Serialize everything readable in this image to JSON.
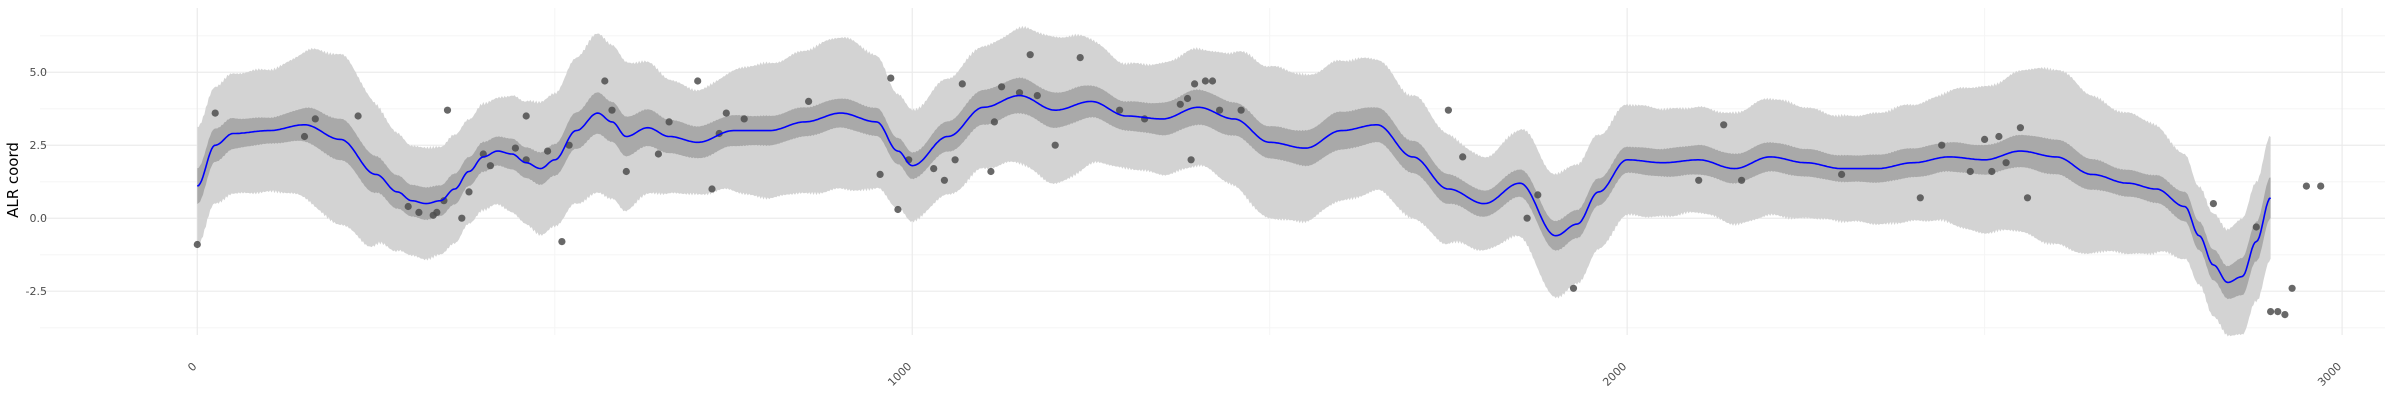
{
  "chart_data": {
    "type": "line",
    "xlabel": "",
    "ylabel": "ALR coord",
    "xlim": [
      -220,
      3060
    ],
    "ylim": [
      -4.0,
      7.2
    ],
    "x_ticks": [
      0,
      1000,
      2000,
      3000
    ],
    "x_tick_labels": [
      "0",
      "1000",
      "2000",
      "3000"
    ],
    "y_ticks": [
      -2.5,
      0.0,
      2.5,
      5.0
    ],
    "y_tick_labels": [
      "-2.5",
      "0.0",
      "2.5",
      "5.0"
    ],
    "grid": true,
    "colors": {
      "line": "#0000ff",
      "inner_band": "#a9a9a9",
      "outer_band": "#d3d3d3",
      "points": "#4d4d4d",
      "grid_major": "#ebebeb",
      "grid_minor": "#f5f5f5"
    },
    "series": [
      {
        "role": "smoothed-mean",
        "x": [
          0,
          25,
          50,
          100,
          150,
          200,
          250,
          280,
          300,
          320,
          340,
          360,
          380,
          400,
          420,
          440,
          460,
          480,
          500,
          530,
          560,
          580,
          600,
          630,
          660,
          700,
          750,
          800,
          850,
          900,
          950,
          980,
          1000,
          1050,
          1100,
          1150,
          1200,
          1250,
          1300,
          1350,
          1400,
          1450,
          1500,
          1550,
          1600,
          1650,
          1700,
          1750,
          1800,
          1850,
          1900,
          1930,
          1960,
          2000,
          2050,
          2100,
          2150,
          2200,
          2250,
          2300,
          2350,
          2400,
          2450,
          2500,
          2550,
          2600,
          2650,
          2700,
          2740,
          2780,
          2800,
          2820,
          2840,
          2860,
          2880,
          2900
        ],
        "y": [
          1.1,
          2.5,
          2.9,
          3.0,
          3.2,
          2.7,
          1.5,
          0.9,
          0.6,
          0.5,
          0.6,
          1.0,
          1.6,
          2.1,
          2.3,
          2.2,
          1.9,
          1.7,
          2.0,
          3.0,
          3.6,
          3.3,
          2.8,
          3.1,
          2.8,
          2.6,
          3.0,
          3.0,
          3.3,
          3.6,
          3.3,
          2.3,
          1.8,
          2.8,
          3.8,
          4.2,
          3.7,
          4.0,
          3.5,
          3.4,
          3.8,
          3.4,
          2.6,
          2.4,
          3.0,
          3.2,
          2.1,
          1.0,
          0.5,
          1.2,
          -0.6,
          -0.2,
          0.9,
          2.0,
          1.9,
          2.0,
          1.7,
          2.1,
          1.9,
          1.7,
          1.7,
          1.9,
          2.1,
          2.0,
          2.3,
          2.1,
          1.5,
          1.2,
          1.0,
          0.4,
          -0.6,
          -1.6,
          -2.2,
          -2.0,
          -0.8,
          0.7
        ]
      },
      {
        "role": "inner-band-halfwidth",
        "x": [
          0,
          100,
          200,
          300,
          400,
          500,
          560,
          700,
          800,
          900,
          1000,
          1100,
          1200,
          1300,
          1400,
          1500,
          1600,
          1700,
          1800,
          1900,
          2000,
          2100,
          2200,
          2300,
          2400,
          2500,
          2600,
          2700,
          2800,
          2900
        ],
        "y": [
          0.6,
          0.45,
          0.7,
          0.55,
          0.5,
          0.55,
          0.7,
          0.55,
          0.5,
          0.5,
          0.45,
          0.6,
          0.6,
          0.5,
          0.6,
          0.55,
          0.65,
          0.55,
          0.45,
          0.5,
          0.45,
          0.5,
          0.5,
          0.45,
          0.5,
          0.5,
          0.6,
          0.45,
          0.5,
          0.7
        ]
      },
      {
        "role": "outer-band-halfwidth",
        "x": [
          0,
          100,
          200,
          300,
          400,
          500,
          560,
          700,
          800,
          900,
          1000,
          1100,
          1200,
          1300,
          1400,
          1500,
          1600,
          1700,
          1800,
          1900,
          2000,
          2100,
          2200,
          2300,
          2400,
          2500,
          2600,
          2700,
          2800,
          2900
        ],
        "y": [
          2.0,
          2.1,
          2.9,
          1.9,
          1.8,
          2.3,
          2.7,
          1.8,
          2.3,
          2.6,
          1.9,
          2.1,
          2.5,
          1.8,
          2.0,
          2.6,
          2.4,
          2.1,
          1.6,
          2.1,
          1.9,
          1.8,
          2.0,
          1.8,
          2.0,
          2.5,
          3.0,
          2.4,
          1.7,
          2.1
        ]
      },
      {
        "role": "observations",
        "x": [
          0,
          25,
          150,
          165,
          225,
          295,
          310,
          330,
          335,
          345,
          350,
          370,
          380,
          400,
          410,
          445,
          460,
          460,
          490,
          510,
          520,
          570,
          580,
          600,
          645,
          660,
          700,
          720,
          730,
          740,
          765,
          855,
          955,
          970,
          980,
          995,
          1030,
          1045,
          1060,
          1070,
          1110,
          1115,
          1125,
          1150,
          1165,
          1175,
          1200,
          1235,
          1290,
          1325,
          1375,
          1385,
          1390,
          1395,
          1410,
          1420,
          1430,
          1460,
          1750,
          1770,
          1860,
          1875,
          1925,
          2100,
          2135,
          2160,
          2300,
          2410,
          2440,
          2480,
          2500,
          2510,
          2520,
          2530,
          2550,
          2560,
          2820,
          2880,
          2900,
          2910,
          2920,
          2930,
          2950,
          2970
        ],
        "y": [
          -0.9,
          3.6,
          2.8,
          3.4,
          3.5,
          0.4,
          0.2,
          0.1,
          0.2,
          0.6,
          3.7,
          0.0,
          0.9,
          2.2,
          1.8,
          2.4,
          2.0,
          3.5,
          2.3,
          -0.8,
          2.5,
          4.7,
          3.7,
          1.6,
          2.2,
          3.3,
          4.7,
          1.0,
          2.9,
          3.6,
          3.4,
          4.0,
          1.5,
          4.8,
          0.3,
          2.0,
          1.7,
          1.3,
          2.0,
          4.6,
          1.6,
          3.3,
          4.5,
          4.3,
          5.6,
          4.2,
          2.5,
          5.5,
          3.7,
          3.4,
          3.9,
          4.1,
          2.0,
          4.6,
          4.7,
          4.7,
          3.7,
          3.7,
          3.7,
          2.1,
          0.0,
          0.8,
          -2.4,
          1.3,
          3.2,
          1.3,
          1.5,
          0.7,
          2.5,
          1.6,
          2.7,
          1.6,
          2.8,
          1.9,
          3.1,
          0.7,
          0.5,
          -0.3,
          -3.2,
          -3.2,
          -3.3,
          -2.4,
          1.1,
          1.1
        ]
      }
    ]
  }
}
